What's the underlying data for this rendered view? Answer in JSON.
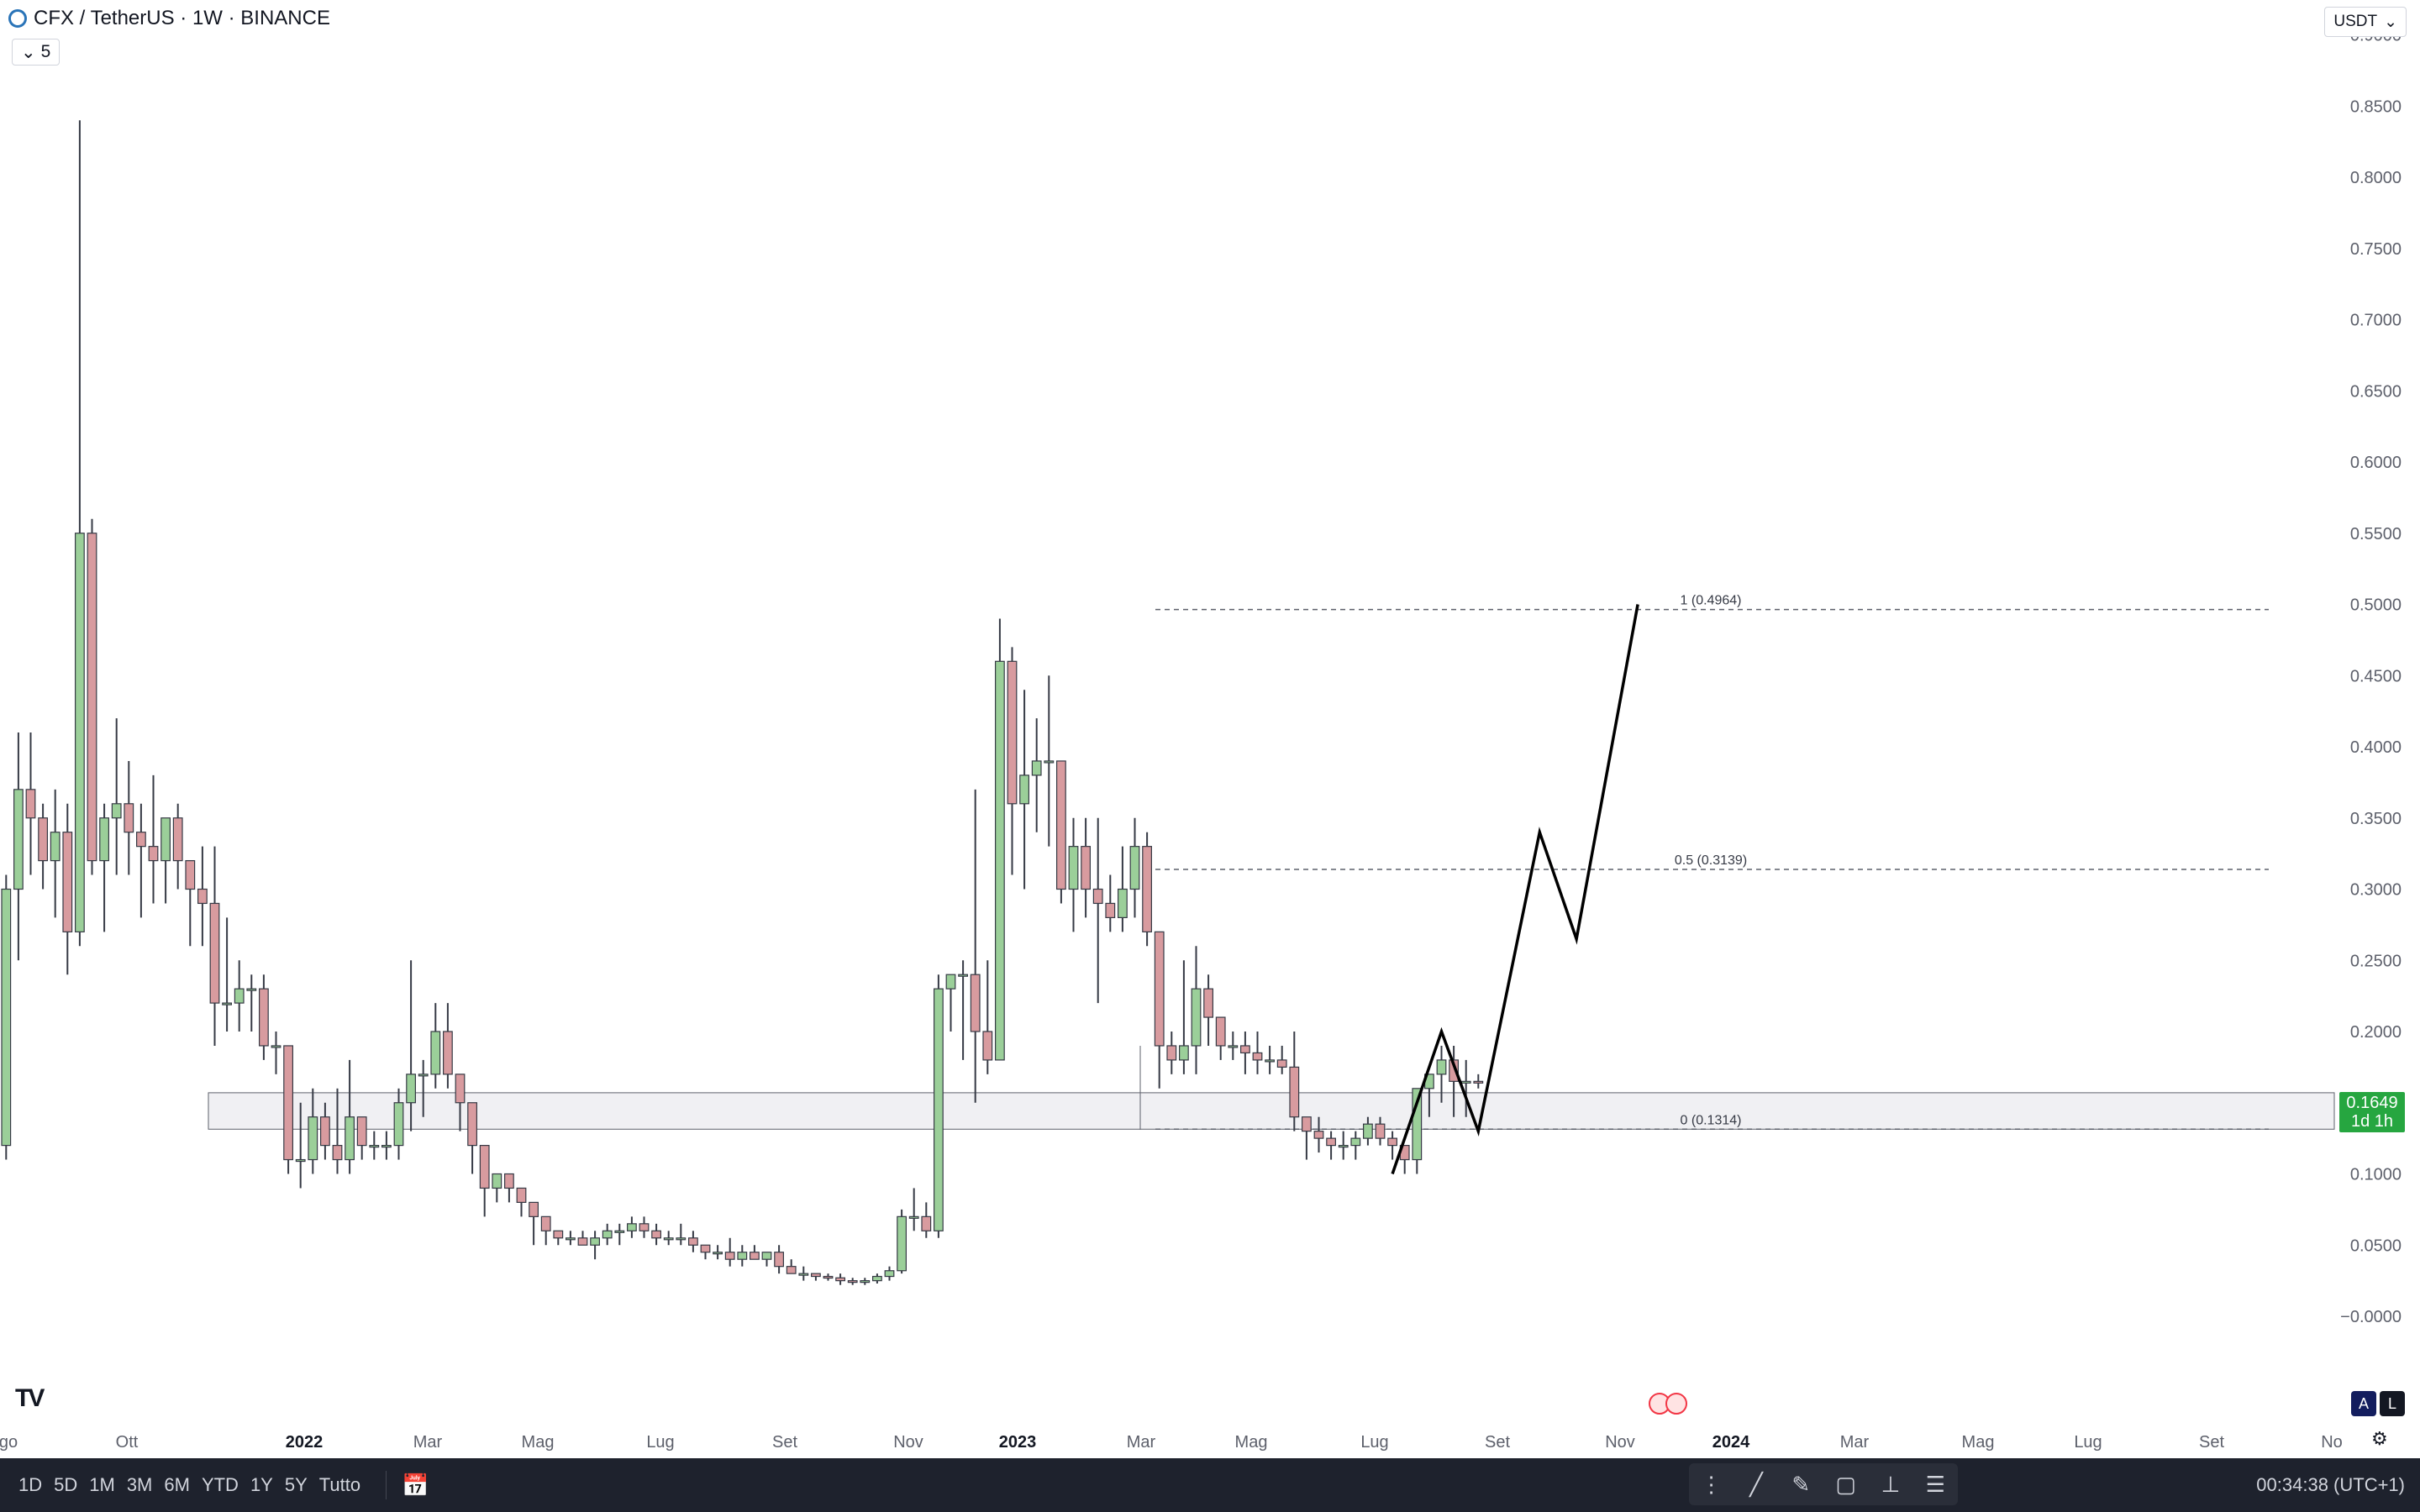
{
  "header": {
    "symbol_title": "CFX / TetherUS · 1W · BINANCE",
    "indicator_count": "5",
    "currency": "USDT"
  },
  "chart_data": {
    "type": "candlestick",
    "ylim": [
      0,
      0.9
    ],
    "y_ticks": [
      "0.9000",
      "0.8500",
      "0.8000",
      "0.7500",
      "0.7000",
      "0.6500",
      "0.6000",
      "0.5500",
      "0.5000",
      "0.4500",
      "0.4000",
      "0.3500",
      "0.3000",
      "0.2500",
      "0.2000",
      "0.1500",
      "0.1000",
      "0.0500",
      "−0.0000"
    ],
    "x_ticks": [
      "go",
      "Ott",
      "2022",
      "Mar",
      "Mag",
      "Lug",
      "Set",
      "Nov",
      "2023",
      "Mar",
      "Mag",
      "Lug",
      "Set",
      "Nov",
      "2024",
      "Mar",
      "Mag",
      "Lug",
      "Set",
      "No"
    ],
    "bold_x_ticks": [
      "2022",
      "2023",
      "2024"
    ],
    "colors": {
      "up": "#9bcf99",
      "down": "#d89b9f",
      "up_border": "#4f9f4c",
      "down_border": "#a44a50"
    },
    "candles_ohlc": [
      [
        0.12,
        0.31,
        0.11,
        0.3
      ],
      [
        0.3,
        0.41,
        0.25,
        0.37
      ],
      [
        0.37,
        0.41,
        0.31,
        0.35
      ],
      [
        0.35,
        0.36,
        0.3,
        0.32
      ],
      [
        0.32,
        0.37,
        0.28,
        0.34
      ],
      [
        0.34,
        0.36,
        0.24,
        0.27
      ],
      [
        0.27,
        0.84,
        0.26,
        0.55
      ],
      [
        0.55,
        0.56,
        0.31,
        0.32
      ],
      [
        0.32,
        0.36,
        0.27,
        0.35
      ],
      [
        0.35,
        0.42,
        0.31,
        0.36
      ],
      [
        0.36,
        0.39,
        0.31,
        0.34
      ],
      [
        0.34,
        0.36,
        0.28,
        0.33
      ],
      [
        0.33,
        0.38,
        0.29,
        0.32
      ],
      [
        0.32,
        0.35,
        0.29,
        0.35
      ],
      [
        0.35,
        0.36,
        0.3,
        0.32
      ],
      [
        0.32,
        0.32,
        0.26,
        0.3
      ],
      [
        0.3,
        0.33,
        0.26,
        0.29
      ],
      [
        0.29,
        0.33,
        0.19,
        0.22
      ],
      [
        0.22,
        0.28,
        0.2,
        0.22
      ],
      [
        0.22,
        0.25,
        0.2,
        0.23
      ],
      [
        0.23,
        0.24,
        0.2,
        0.23
      ],
      [
        0.23,
        0.24,
        0.18,
        0.19
      ],
      [
        0.19,
        0.2,
        0.17,
        0.19
      ],
      [
        0.19,
        0.19,
        0.1,
        0.11
      ],
      [
        0.11,
        0.15,
        0.09,
        0.11
      ],
      [
        0.11,
        0.16,
        0.1,
        0.14
      ],
      [
        0.14,
        0.15,
        0.11,
        0.12
      ],
      [
        0.12,
        0.16,
        0.1,
        0.11
      ],
      [
        0.11,
        0.18,
        0.1,
        0.14
      ],
      [
        0.14,
        0.14,
        0.11,
        0.12
      ],
      [
        0.12,
        0.13,
        0.11,
        0.12
      ],
      [
        0.12,
        0.13,
        0.11,
        0.12
      ],
      [
        0.12,
        0.16,
        0.11,
        0.15
      ],
      [
        0.15,
        0.25,
        0.13,
        0.17
      ],
      [
        0.17,
        0.18,
        0.14,
        0.17
      ],
      [
        0.17,
        0.22,
        0.16,
        0.2
      ],
      [
        0.2,
        0.22,
        0.16,
        0.17
      ],
      [
        0.17,
        0.17,
        0.13,
        0.15
      ],
      [
        0.15,
        0.15,
        0.1,
        0.12
      ],
      [
        0.12,
        0.12,
        0.07,
        0.09
      ],
      [
        0.09,
        0.1,
        0.08,
        0.1
      ],
      [
        0.1,
        0.1,
        0.08,
        0.09
      ],
      [
        0.09,
        0.09,
        0.07,
        0.08
      ],
      [
        0.08,
        0.08,
        0.05,
        0.07
      ],
      [
        0.07,
        0.07,
        0.05,
        0.06
      ],
      [
        0.06,
        0.06,
        0.05,
        0.055
      ],
      [
        0.055,
        0.06,
        0.05,
        0.055
      ],
      [
        0.055,
        0.06,
        0.05,
        0.05
      ],
      [
        0.05,
        0.06,
        0.04,
        0.055
      ],
      [
        0.055,
        0.065,
        0.05,
        0.06
      ],
      [
        0.06,
        0.065,
        0.05,
        0.06
      ],
      [
        0.06,
        0.07,
        0.055,
        0.065
      ],
      [
        0.065,
        0.07,
        0.055,
        0.06
      ],
      [
        0.06,
        0.065,
        0.05,
        0.055
      ],
      [
        0.055,
        0.06,
        0.05,
        0.055
      ],
      [
        0.055,
        0.065,
        0.05,
        0.055
      ],
      [
        0.055,
        0.06,
        0.045,
        0.05
      ],
      [
        0.05,
        0.05,
        0.04,
        0.045
      ],
      [
        0.045,
        0.05,
        0.04,
        0.045
      ],
      [
        0.045,
        0.055,
        0.035,
        0.04
      ],
      [
        0.04,
        0.05,
        0.035,
        0.045
      ],
      [
        0.045,
        0.05,
        0.04,
        0.04
      ],
      [
        0.04,
        0.045,
        0.035,
        0.045
      ],
      [
        0.045,
        0.05,
        0.03,
        0.035
      ],
      [
        0.035,
        0.04,
        0.03,
        0.03
      ],
      [
        0.03,
        0.035,
        0.025,
        0.03
      ],
      [
        0.03,
        0.03,
        0.025,
        0.028
      ],
      [
        0.028,
        0.03,
        0.025,
        0.027
      ],
      [
        0.027,
        0.03,
        0.022,
        0.025
      ],
      [
        0.025,
        0.027,
        0.022,
        0.024
      ],
      [
        0.024,
        0.027,
        0.022,
        0.025
      ],
      [
        0.025,
        0.03,
        0.023,
        0.028
      ],
      [
        0.028,
        0.035,
        0.025,
        0.032
      ],
      [
        0.032,
        0.075,
        0.03,
        0.07
      ],
      [
        0.07,
        0.09,
        0.06,
        0.07
      ],
      [
        0.07,
        0.08,
        0.055,
        0.06
      ],
      [
        0.06,
        0.24,
        0.055,
        0.23
      ],
      [
        0.23,
        0.24,
        0.2,
        0.24
      ],
      [
        0.24,
        0.25,
        0.18,
        0.24
      ],
      [
        0.24,
        0.37,
        0.15,
        0.2
      ],
      [
        0.2,
        0.25,
        0.17,
        0.18
      ],
      [
        0.18,
        0.49,
        0.18,
        0.46
      ],
      [
        0.46,
        0.47,
        0.31,
        0.36
      ],
      [
        0.36,
        0.44,
        0.3,
        0.38
      ],
      [
        0.38,
        0.42,
        0.34,
        0.39
      ],
      [
        0.39,
        0.45,
        0.33,
        0.39
      ],
      [
        0.39,
        0.39,
        0.29,
        0.3
      ],
      [
        0.3,
        0.35,
        0.27,
        0.33
      ],
      [
        0.33,
        0.35,
        0.28,
        0.3
      ],
      [
        0.3,
        0.35,
        0.22,
        0.29
      ],
      [
        0.29,
        0.31,
        0.27,
        0.28
      ],
      [
        0.28,
        0.33,
        0.27,
        0.3
      ],
      [
        0.3,
        0.35,
        0.28,
        0.33
      ],
      [
        0.33,
        0.34,
        0.26,
        0.27
      ],
      [
        0.27,
        0.27,
        0.16,
        0.19
      ],
      [
        0.19,
        0.2,
        0.17,
        0.18
      ],
      [
        0.18,
        0.25,
        0.17,
        0.19
      ],
      [
        0.19,
        0.26,
        0.17,
        0.23
      ],
      [
        0.23,
        0.24,
        0.19,
        0.21
      ],
      [
        0.21,
        0.21,
        0.18,
        0.19
      ],
      [
        0.19,
        0.2,
        0.18,
        0.19
      ],
      [
        0.19,
        0.2,
        0.17,
        0.185
      ],
      [
        0.185,
        0.2,
        0.17,
        0.18
      ],
      [
        0.18,
        0.19,
        0.17,
        0.18
      ],
      [
        0.18,
        0.19,
        0.17,
        0.175
      ],
      [
        0.175,
        0.2,
        0.13,
        0.14
      ],
      [
        0.14,
        0.14,
        0.11,
        0.13
      ],
      [
        0.13,
        0.14,
        0.115,
        0.125
      ],
      [
        0.125,
        0.13,
        0.11,
        0.12
      ],
      [
        0.12,
        0.13,
        0.11,
        0.12
      ],
      [
        0.12,
        0.13,
        0.11,
        0.125
      ],
      [
        0.125,
        0.14,
        0.12,
        0.135
      ],
      [
        0.135,
        0.14,
        0.12,
        0.125
      ],
      [
        0.125,
        0.13,
        0.11,
        0.12
      ],
      [
        0.12,
        0.12,
        0.1,
        0.11
      ],
      [
        0.11,
        0.16,
        0.1,
        0.16
      ],
      [
        0.16,
        0.17,
        0.14,
        0.17
      ],
      [
        0.17,
        0.19,
        0.15,
        0.18
      ],
      [
        0.18,
        0.19,
        0.14,
        0.165
      ],
      [
        0.165,
        0.18,
        0.14,
        0.165
      ],
      [
        0.165,
        0.17,
        0.16,
        0.1649
      ]
    ],
    "fibonacci": [
      {
        "label": "1 (0.4964)",
        "value": 0.4964
      },
      {
        "label": "0.5 (0.3139)",
        "value": 0.3139
      },
      {
        "label": "0 (0.1314)",
        "value": 0.1314
      }
    ],
    "support_zone": [
      0.1314,
      0.157
    ],
    "projection_path": [
      [
        113,
        0.1
      ],
      [
        117,
        0.2
      ],
      [
        120,
        0.13
      ],
      [
        125,
        0.34
      ],
      [
        128,
        0.265
      ],
      [
        133,
        0.5
      ]
    ],
    "last_price": {
      "value": "0.1649",
      "countdown": "1d 1h"
    }
  },
  "footer": {
    "ranges": [
      "1D",
      "5D",
      "1M",
      "3M",
      "6M",
      "YTD",
      "1Y",
      "5Y",
      "Tutto"
    ],
    "clock": "00:34:38 (UTC+1)",
    "log_label": "A",
    "log2_label": "L"
  }
}
